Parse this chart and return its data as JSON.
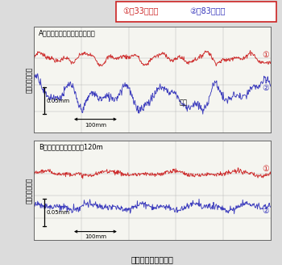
{
  "legend_text_1": "①：33日経過",
  "legend_text_2": "②：83日経過",
  "legend_color_1": "#cc2222",
  "legend_color_2": "#3333bb",
  "subplot_a_title": "A地点：緩和材散布位置の直前",
  "subplot_b_title": "B地点：散布位置の後方120m",
  "ylabel": "内軌頭頂面凹凸",
  "xlabel": "レール長手方向位置",
  "scale_label_v": "0.05mm",
  "scale_label_h": "100mm",
  "annotation_a": "凹部",
  "circ_1": "①",
  "circ_2": "②",
  "background_color": "#dcdcdc",
  "panel_color": "#f5f5f0",
  "grid_color": "#b0b0b0"
}
